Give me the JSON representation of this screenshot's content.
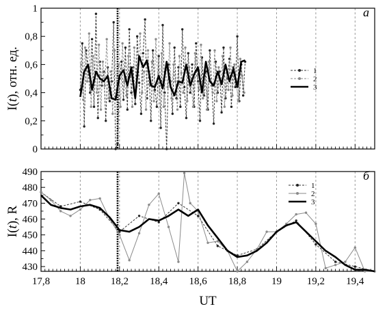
{
  "chart_data": [
    {
      "type": "line",
      "panel_label": "а",
      "ylabel": "I(t), отн. ед.",
      "ylabel_parts": [
        "I(",
        "t",
        "), отн. ед."
      ],
      "xlim": [
        17.8,
        19.5
      ],
      "ylim": [
        0,
        1
      ],
      "yticks": [
        0,
        0.2,
        0.4,
        0.6,
        0.8,
        1
      ],
      "ytick_labels": [
        "0",
        "0,2",
        "0,4",
        "0,6",
        "0,8",
        "1"
      ],
      "grid": "vertical dashed at 0.2 UT",
      "marker_line": 18.19,
      "legend": {
        "placement": "right",
        "entries": [
          "1",
          "2",
          "3"
        ]
      },
      "series": [
        {
          "name": "1",
          "style": "dark dashed with dots",
          "x": [
            18.0,
            18.01,
            18.02,
            18.03,
            18.04,
            18.05,
            18.06,
            18.07,
            18.08,
            18.09,
            18.1,
            18.11,
            18.12,
            18.13,
            18.14,
            18.15,
            18.16,
            18.17,
            18.18,
            18.19,
            18.2,
            18.21,
            18.22,
            18.23,
            18.24,
            18.25,
            18.26,
            18.27,
            18.28,
            18.29,
            18.3,
            18.31,
            18.32,
            18.33,
            18.34,
            18.35,
            18.36,
            18.37,
            18.38,
            18.39,
            18.4,
            18.41,
            18.42,
            18.43,
            18.44,
            18.45,
            18.46,
            18.47,
            18.48,
            18.49,
            18.5,
            18.51,
            18.52,
            18.53,
            18.54,
            18.55,
            18.56,
            18.57,
            18.58,
            18.59,
            18.6,
            18.61,
            18.62,
            18.63,
            18.64,
            18.65,
            18.66,
            18.67,
            18.68,
            18.69,
            18.7,
            18.71,
            18.72,
            18.73,
            18.74,
            18.75,
            18.76,
            18.77,
            18.78,
            18.79,
            18.8,
            18.81,
            18.82,
            18.83,
            18.84
          ],
          "values": [
            0.42,
            0.75,
            0.16,
            0.7,
            0.55,
            0.4,
            0.78,
            0.3,
            0.96,
            0.22,
            0.62,
            0.45,
            0.55,
            0.2,
            0.58,
            0.34,
            0.48,
            0.9,
            0.0,
            0.04,
            0.5,
            0.62,
            0.35,
            0.72,
            0.28,
            0.85,
            0.4,
            0.58,
            0.32,
            0.8,
            0.47,
            0.25,
            0.68,
            0.92,
            0.36,
            0.55,
            0.2,
            0.7,
            0.42,
            0.3,
            0.66,
            0.15,
            0.88,
            0.4,
            0.0,
            0.6,
            0.48,
            0.25,
            0.72,
            0.36,
            0.58,
            0.3,
            0.85,
            0.44,
            0.22,
            0.68,
            0.4,
            0.6,
            0.3,
            0.75,
            0.48,
            0.2,
            0.65,
            0.38,
            0.55,
            0.28,
            0.7,
            0.45,
            0.18,
            0.62,
            0.4,
            0.55,
            0.26,
            0.72,
            0.36,
            0.5,
            0.64,
            0.3,
            0.58,
            0.44,
            0.8,
            0.34,
            0.6,
            0.38,
            0.62
          ]
        },
        {
          "name": "2",
          "style": "gray dashed with dots",
          "x": [
            18.005,
            18.015,
            18.025,
            18.035,
            18.045,
            18.055,
            18.065,
            18.075,
            18.085,
            18.095,
            18.105,
            18.115,
            18.125,
            18.135,
            18.145,
            18.155,
            18.165,
            18.175,
            18.185,
            18.195,
            18.205,
            18.215,
            18.225,
            18.235,
            18.245,
            18.255,
            18.265,
            18.275,
            18.285,
            18.295,
            18.305,
            18.315,
            18.325,
            18.335,
            18.345,
            18.355,
            18.365,
            18.375,
            18.385,
            18.395,
            18.405,
            18.415,
            18.425,
            18.435,
            18.445,
            18.455,
            18.465,
            18.475,
            18.485,
            18.495,
            18.505,
            18.515,
            18.525,
            18.535,
            18.545,
            18.555,
            18.565,
            18.575,
            18.585,
            18.595,
            18.605,
            18.615,
            18.625,
            18.635,
            18.645,
            18.655,
            18.665,
            18.675,
            18.685,
            18.695,
            18.705,
            18.715,
            18.725,
            18.735,
            18.745,
            18.755,
            18.765,
            18.775,
            18.785,
            18.795,
            18.805,
            18.815,
            18.825,
            18.835
          ],
          "values": [
            0.6,
            0.35,
            0.72,
            0.48,
            0.82,
            0.3,
            0.66,
            0.5,
            0.4,
            0.74,
            0.28,
            0.62,
            0.45,
            0.78,
            0.36,
            0.55,
            0.25,
            0.7,
            0.42,
            0.6,
            0.3,
            0.75,
            0.48,
            0.38,
            0.66,
            0.52,
            0.3,
            0.72,
            0.44,
            0.6,
            0.82,
            0.4,
            0.55,
            0.28,
            0.7,
            0.46,
            0.62,
            0.34,
            0.78,
            0.5,
            0.4,
            0.68,
            0.3,
            0.56,
            0.44,
            0.75,
            0.36,
            0.6,
            0.48,
            0.28,
            0.66,
            0.54,
            0.4,
            0.72,
            0.34,
            0.58,
            0.46,
            0.3,
            0.68,
            0.52,
            0.42,
            0.74,
            0.36,
            0.56,
            0.28,
            0.62,
            0.48,
            0.4,
            0.7,
            0.34,
            0.58,
            0.46,
            0.66,
            0.3,
            0.54,
            0.42,
            0.72,
            0.38,
            0.6,
            0.48,
            0.34,
            0.64,
            0.52,
            0.4
          ]
        },
        {
          "name": "3",
          "style": "thick black smoothed",
          "x": [
            18.0,
            18.02,
            18.04,
            18.06,
            18.08,
            18.1,
            18.12,
            18.14,
            18.16,
            18.18,
            18.2,
            18.22,
            18.24,
            18.26,
            18.28,
            18.3,
            18.32,
            18.34,
            18.36,
            18.38,
            18.4,
            18.42,
            18.44,
            18.46,
            18.48,
            18.5,
            18.52,
            18.54,
            18.56,
            18.58,
            18.6,
            18.62,
            18.64,
            18.66,
            18.68,
            18.7,
            18.72,
            18.74,
            18.76,
            18.78,
            18.8,
            18.82,
            18.84
          ],
          "values": [
            0.37,
            0.55,
            0.6,
            0.42,
            0.55,
            0.5,
            0.48,
            0.52,
            0.36,
            0.35,
            0.52,
            0.56,
            0.45,
            0.58,
            0.36,
            0.66,
            0.58,
            0.63,
            0.45,
            0.44,
            0.52,
            0.43,
            0.62,
            0.44,
            0.38,
            0.48,
            0.47,
            0.6,
            0.45,
            0.53,
            0.58,
            0.4,
            0.62,
            0.48,
            0.45,
            0.55,
            0.46,
            0.6,
            0.48,
            0.57,
            0.44,
            0.62,
            0.63
          ]
        }
      ]
    },
    {
      "type": "line",
      "panel_label": "б",
      "ylabel": "I(t), R",
      "ylabel_parts": [
        "I(",
        "t",
        "), R"
      ],
      "xlabel": "UT",
      "xlim": [
        17.8,
        19.5
      ],
      "ylim": [
        427,
        490
      ],
      "yticks": [
        430,
        440,
        450,
        460,
        470,
        480,
        490
      ],
      "xticks": [
        17.8,
        18,
        18.2,
        18.4,
        18.6,
        18.8,
        19,
        19.2,
        19.4
      ],
      "xtick_labels": [
        "17,8",
        "18",
        "18,2",
        "18,4",
        "18,6",
        "18,8",
        "19",
        "19,2",
        "19,4"
      ],
      "grid": "vertical dashed at 0.2 UT",
      "marker_line": 18.19,
      "legend": {
        "placement": "top-right",
        "entries": [
          "1",
          "2",
          "3"
        ]
      },
      "series": [
        {
          "name": "1",
          "style": "dark dashed with dots",
          "x": [
            17.8,
            17.9,
            18.0,
            18.1,
            18.2,
            18.3,
            18.4,
            18.5,
            18.6,
            18.7,
            18.8,
            18.9,
            19.0,
            19.1,
            19.2,
            19.3,
            19.4,
            19.5
          ],
          "values": [
            477,
            468,
            471,
            466,
            452,
            462,
            458,
            470,
            462,
            443,
            437,
            441,
            452,
            459,
            444,
            433,
            430,
            427
          ]
        },
        {
          "name": "2",
          "style": "gray thin with dots",
          "x": [
            17.8,
            17.85,
            17.9,
            17.95,
            18.0,
            18.05,
            18.1,
            18.15,
            18.2,
            18.25,
            18.3,
            18.35,
            18.4,
            18.45,
            18.5,
            18.53,
            18.56,
            18.6,
            18.65,
            18.7,
            18.75,
            18.8,
            18.85,
            18.9,
            18.95,
            19.0,
            19.05,
            19.1,
            19.15,
            19.2,
            19.25,
            19.3,
            19.35,
            19.4,
            19.45,
            19.5
          ],
          "values": [
            477,
            472,
            465,
            462,
            466,
            472,
            473,
            460,
            450,
            434,
            451,
            469,
            476,
            455,
            433,
            489,
            470,
            465,
            445,
            446,
            440,
            427,
            433,
            441,
            452,
            452,
            457,
            463,
            464,
            457,
            429,
            431,
            433,
            442,
            427,
            427
          ]
        },
        {
          "name": "3",
          "style": "thick black smoothed",
          "x": [
            17.8,
            17.85,
            17.9,
            17.95,
            18.0,
            18.05,
            18.1,
            18.15,
            18.2,
            18.25,
            18.3,
            18.35,
            18.4,
            18.45,
            18.5,
            18.55,
            18.6,
            18.65,
            18.7,
            18.75,
            18.8,
            18.85,
            18.9,
            18.95,
            19.0,
            19.05,
            19.1,
            19.15,
            19.2,
            19.25,
            19.3,
            19.35,
            19.4,
            19.45,
            19.5
          ],
          "values": [
            475,
            469,
            467,
            466,
            468,
            469,
            467,
            461,
            453,
            452,
            455,
            460,
            459,
            462,
            466,
            462,
            466,
            456,
            448,
            440,
            436,
            437,
            440,
            445,
            452,
            456,
            458,
            452,
            446,
            440,
            436,
            431,
            428,
            428,
            427
          ]
        }
      ]
    }
  ]
}
